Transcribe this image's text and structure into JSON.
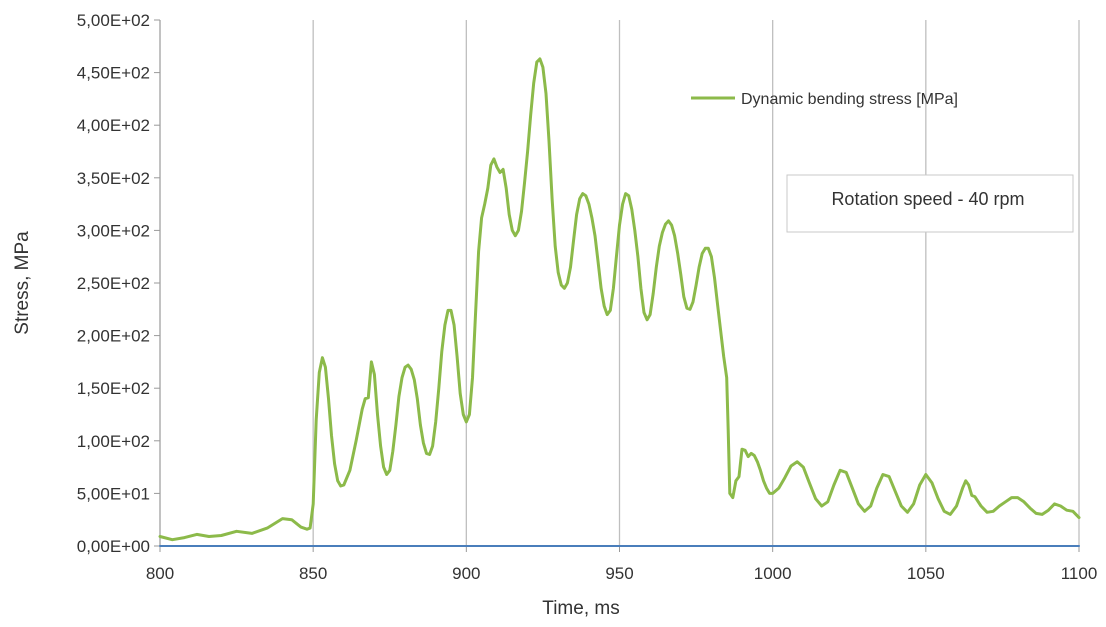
{
  "chart_data": {
    "type": "line",
    "title": "",
    "xlabel": "Time, ms",
    "ylabel": "Stress, MPa",
    "xlim": [
      800,
      1100
    ],
    "ylim": [
      0,
      500
    ],
    "x_ticks": [
      800,
      850,
      900,
      950,
      1000,
      1050,
      1100
    ],
    "y_ticks": [
      0,
      50,
      100,
      150,
      200,
      250,
      300,
      350,
      400,
      450,
      500
    ],
    "x_tick_labels": [
      "800",
      "850",
      "900",
      "950",
      "1000",
      "1050",
      "1100"
    ],
    "y_tick_labels": [
      "0,00E+00",
      "5,00E+01",
      "1,00E+02",
      "1,50E+02",
      "2,00E+02",
      "2,50E+02",
      "3,00E+02",
      "3,50E+02",
      "4,00E+02",
      "4,50E+02",
      "5,00E+02"
    ],
    "grid": "vertical",
    "legend_position": "top-right",
    "annotation": "Rotation speed - 40 rpm",
    "series": [
      {
        "name": "Dynamic bending stress [MPa]",
        "color": "#8cba4a",
        "points": [
          [
            800,
            9
          ],
          [
            804,
            6
          ],
          [
            808,
            8
          ],
          [
            812,
            11
          ],
          [
            816,
            9
          ],
          [
            820,
            10
          ],
          [
            825,
            14
          ],
          [
            830,
            12
          ],
          [
            835,
            17
          ],
          [
            840,
            26
          ],
          [
            843,
            25
          ],
          [
            846,
            18
          ],
          [
            848,
            16
          ],
          [
            849,
            17
          ],
          [
            850,
            40
          ],
          [
            851,
            120
          ],
          [
            852,
            165
          ],
          [
            853,
            179
          ],
          [
            854,
            170
          ],
          [
            855,
            140
          ],
          [
            856,
            105
          ],
          [
            857,
            78
          ],
          [
            858,
            62
          ],
          [
            859,
            57
          ],
          [
            860,
            58
          ],
          [
            862,
            72
          ],
          [
            864,
            100
          ],
          [
            866,
            130
          ],
          [
            867,
            140
          ],
          [
            868,
            141
          ],
          [
            869,
            175
          ],
          [
            870,
            163
          ],
          [
            871,
            125
          ],
          [
            872,
            95
          ],
          [
            873,
            75
          ],
          [
            874,
            68
          ],
          [
            875,
            72
          ],
          [
            876,
            90
          ],
          [
            877,
            115
          ],
          [
            878,
            142
          ],
          [
            879,
            160
          ],
          [
            880,
            170
          ],
          [
            881,
            172
          ],
          [
            882,
            168
          ],
          [
            883,
            158
          ],
          [
            884,
            140
          ],
          [
            885,
            115
          ],
          [
            886,
            98
          ],
          [
            887,
            88
          ],
          [
            888,
            87
          ],
          [
            889,
            95
          ],
          [
            890,
            118
          ],
          [
            891,
            150
          ],
          [
            892,
            185
          ],
          [
            893,
            210
          ],
          [
            894,
            224
          ],
          [
            895,
            224
          ],
          [
            896,
            210
          ],
          [
            897,
            180
          ],
          [
            898,
            145
          ],
          [
            899,
            125
          ],
          [
            900,
            118
          ],
          [
            901,
            125
          ],
          [
            902,
            160
          ],
          [
            903,
            220
          ],
          [
            904,
            280
          ],
          [
            905,
            312
          ],
          [
            906,
            325
          ],
          [
            907,
            340
          ],
          [
            908,
            362
          ],
          [
            909,
            368
          ],
          [
            910,
            360
          ],
          [
            911,
            355
          ],
          [
            912,
            358
          ],
          [
            913,
            340
          ],
          [
            914,
            315
          ],
          [
            915,
            300
          ],
          [
            916,
            295
          ],
          [
            917,
            300
          ],
          [
            918,
            318
          ],
          [
            919,
            345
          ],
          [
            920,
            375
          ],
          [
            921,
            410
          ],
          [
            922,
            440
          ],
          [
            923,
            460
          ],
          [
            924,
            463
          ],
          [
            925,
            455
          ],
          [
            926,
            430
          ],
          [
            927,
            385
          ],
          [
            928,
            330
          ],
          [
            929,
            285
          ],
          [
            930,
            260
          ],
          [
            931,
            248
          ],
          [
            932,
            245
          ],
          [
            933,
            250
          ],
          [
            934,
            265
          ],
          [
            935,
            290
          ],
          [
            936,
            315
          ],
          [
            937,
            330
          ],
          [
            938,
            335
          ],
          [
            939,
            333
          ],
          [
            940,
            325
          ],
          [
            941,
            312
          ],
          [
            942,
            295
          ],
          [
            943,
            270
          ],
          [
            944,
            245
          ],
          [
            945,
            228
          ],
          [
            946,
            220
          ],
          [
            947,
            224
          ],
          [
            948,
            245
          ],
          [
            949,
            275
          ],
          [
            950,
            305
          ],
          [
            951,
            325
          ],
          [
            952,
            335
          ],
          [
            953,
            333
          ],
          [
            954,
            320
          ],
          [
            955,
            300
          ],
          [
            956,
            275
          ],
          [
            957,
            245
          ],
          [
            958,
            222
          ],
          [
            959,
            215
          ],
          [
            960,
            220
          ],
          [
            961,
            240
          ],
          [
            962,
            265
          ],
          [
            963,
            285
          ],
          [
            964,
            298
          ],
          [
            965,
            306
          ],
          [
            966,
            309
          ],
          [
            967,
            305
          ],
          [
            968,
            295
          ],
          [
            969,
            278
          ],
          [
            970,
            258
          ],
          [
            971,
            237
          ],
          [
            972,
            226
          ],
          [
            973,
            225
          ],
          [
            974,
            232
          ],
          [
            975,
            248
          ],
          [
            976,
            265
          ],
          [
            977,
            278
          ],
          [
            978,
            283
          ],
          [
            979,
            283
          ],
          [
            980,
            275
          ],
          [
            981,
            255
          ],
          [
            982,
            230
          ],
          [
            983,
            205
          ],
          [
            984,
            180
          ],
          [
            985,
            160
          ],
          [
            985.5,
            110
          ],
          [
            986,
            50
          ],
          [
            987,
            46
          ],
          [
            988,
            62
          ],
          [
            989,
            66
          ],
          [
            990,
            92
          ],
          [
            991,
            91
          ],
          [
            992,
            85
          ],
          [
            993,
            88
          ],
          [
            994,
            86
          ],
          [
            995,
            80
          ],
          [
            996,
            72
          ],
          [
            997,
            62
          ],
          [
            998,
            55
          ],
          [
            999,
            50
          ],
          [
            1000,
            50
          ],
          [
            1002,
            55
          ],
          [
            1004,
            65
          ],
          [
            1006,
            76
          ],
          [
            1008,
            80
          ],
          [
            1010,
            75
          ],
          [
            1012,
            60
          ],
          [
            1014,
            45
          ],
          [
            1016,
            38
          ],
          [
            1018,
            42
          ],
          [
            1020,
            58
          ],
          [
            1022,
            72
          ],
          [
            1024,
            70
          ],
          [
            1026,
            55
          ],
          [
            1028,
            40
          ],
          [
            1030,
            33
          ],
          [
            1032,
            38
          ],
          [
            1034,
            55
          ],
          [
            1036,
            68
          ],
          [
            1038,
            66
          ],
          [
            1040,
            52
          ],
          [
            1042,
            38
          ],
          [
            1044,
            32
          ],
          [
            1046,
            40
          ],
          [
            1048,
            58
          ],
          [
            1050,
            68
          ],
          [
            1052,
            60
          ],
          [
            1054,
            45
          ],
          [
            1056,
            33
          ],
          [
            1058,
            30
          ],
          [
            1060,
            38
          ],
          [
            1062,
            55
          ],
          [
            1063,
            62
          ],
          [
            1064,
            58
          ],
          [
            1065,
            48
          ],
          [
            1066,
            47
          ],
          [
            1068,
            38
          ],
          [
            1070,
            32
          ],
          [
            1072,
            33
          ],
          [
            1074,
            38
          ],
          [
            1076,
            42
          ],
          [
            1078,
            46
          ],
          [
            1080,
            46
          ],
          [
            1082,
            42
          ],
          [
            1084,
            36
          ],
          [
            1086,
            31
          ],
          [
            1088,
            30
          ],
          [
            1090,
            34
          ],
          [
            1092,
            40
          ],
          [
            1094,
            38
          ],
          [
            1096,
            34
          ],
          [
            1098,
            33
          ],
          [
            1100,
            27
          ]
        ]
      },
      {
        "color": "#4a7ebb",
        "points": [
          [
            800,
            0
          ],
          [
            1100,
            0
          ]
        ]
      }
    ]
  }
}
